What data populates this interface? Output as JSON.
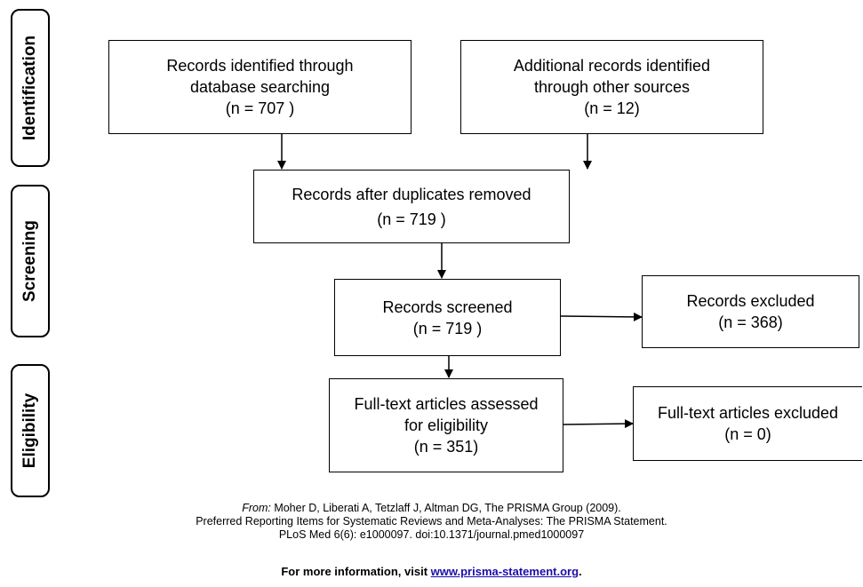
{
  "phases": {
    "identification": "Identification",
    "screening": "Screening",
    "eligibility": "Eligibility"
  },
  "boxes": {
    "db_search": [
      "Records identified through",
      "database searching",
      "(n = 707 )"
    ],
    "other_sources": [
      "Additional records identified",
      "through other sources",
      "(n =  12)"
    ],
    "after_duplicates": [
      "Records after duplicates removed",
      "(n = 719 )"
    ],
    "screened": [
      "Records screened",
      "(n = 719 )"
    ],
    "excluded": [
      "Records excluded",
      "(n = 368)"
    ],
    "fulltext_assessed": [
      "Full-text articles assessed",
      "for eligibility",
      "(n = 351)"
    ],
    "fulltext_excluded": [
      "Full-text articles excluded",
      "(n = 0)"
    ]
  },
  "citation": {
    "from_label": "From:",
    "line1": " Moher D, Liberati A, Tetzlaff J, Altman DG, The PRISMA Group (2009).",
    "line2": "Preferred Reporting Items for Systematic Reviews and Meta-Analyses: The PRISMA Statement.",
    "line3": "PLoS Med 6(6): e1000097. doi:10.1371/journal.pmed1000097"
  },
  "more_info": {
    "prefix": "For more information, visit ",
    "link": "www.prisma-statement.org",
    "suffix": "."
  }
}
